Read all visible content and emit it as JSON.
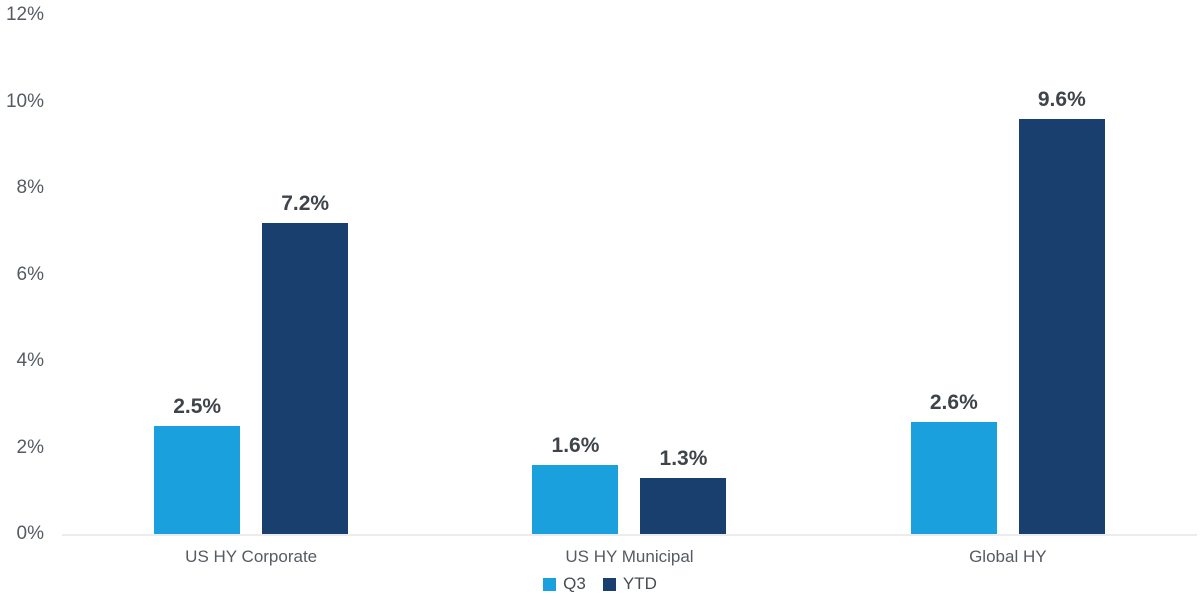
{
  "chart_data": {
    "type": "bar",
    "title": "",
    "xlabel": "",
    "ylabel": "",
    "categories": [
      "US HY Corporate",
      "US HY Municipal",
      "Global HY"
    ],
    "series": [
      {
        "name": "Q3",
        "color": "#1AA0DC",
        "values": [
          2.5,
          1.6,
          2.6
        ],
        "labels": [
          "2.5%",
          "1.6%",
          "2.6%"
        ]
      },
      {
        "name": "YTD",
        "color": "#183F6E",
        "values": [
          7.2,
          1.3,
          9.6
        ],
        "labels": [
          "7.2%",
          "1.3%",
          "9.6%"
        ]
      }
    ],
    "ylim": [
      0,
      12
    ],
    "yticks": [
      {
        "value": 12,
        "label": "12%"
      },
      {
        "value": 10,
        "label": "10%"
      },
      {
        "value": 8,
        "label": "8%"
      },
      {
        "value": 6,
        "label": "6%"
      },
      {
        "value": 4,
        "label": "4%"
      },
      {
        "value": 2,
        "label": "2%"
      },
      {
        "value": 0,
        "label": "0%"
      }
    ],
    "grid": false,
    "legend_position": "bottom"
  },
  "colors": {
    "q3_bar": "#1AA0DC",
    "ytd_bar": "#183F6E",
    "axis_line": "#ECECEC",
    "tick_label": "#555B63",
    "data_label": "#3F444A",
    "background": "#FFFFFF"
  }
}
